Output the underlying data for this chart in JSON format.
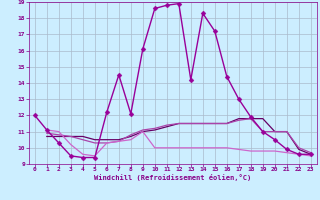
{
  "background_color": "#cceeff",
  "grid_color": "#aabbcc",
  "xlim": [
    -0.5,
    23.5
  ],
  "ylim": [
    9,
    19
  ],
  "xticks": [
    0,
    1,
    2,
    3,
    4,
    5,
    6,
    7,
    8,
    9,
    10,
    11,
    12,
    13,
    14,
    15,
    16,
    17,
    18,
    19,
    20,
    21,
    22,
    23
  ],
  "yticks": [
    9,
    10,
    11,
    12,
    13,
    14,
    15,
    16,
    17,
    18,
    19
  ],
  "xlabel": "Windchill (Refroidissement éolien,°C)",
  "series": [
    {
      "x": [
        0,
        1,
        2,
        3,
        4,
        5,
        6,
        7,
        8,
        9,
        10,
        11,
        12,
        13,
        14,
        15,
        16,
        17,
        18,
        19,
        20,
        21,
        22,
        23
      ],
      "y": [
        12.0,
        11.1,
        10.3,
        9.5,
        9.4,
        9.4,
        12.2,
        14.5,
        12.1,
        16.1,
        18.6,
        18.8,
        18.9,
        14.2,
        18.3,
        17.2,
        14.4,
        13.0,
        11.9,
        11.0,
        10.5,
        9.9,
        9.6,
        9.6
      ],
      "color": "#990099",
      "marker": "D",
      "markersize": 2.5,
      "linewidth": 1.0
    },
    {
      "x": [
        1,
        2,
        3,
        4,
        5,
        6,
        7,
        8,
        9,
        10,
        11,
        12,
        13,
        14,
        15,
        16,
        17,
        18,
        19,
        20,
        21,
        22,
        23
      ],
      "y": [
        10.7,
        10.7,
        10.7,
        10.7,
        10.5,
        10.5,
        10.5,
        10.7,
        11.0,
        11.1,
        11.3,
        11.5,
        11.5,
        11.5,
        11.5,
        11.5,
        11.8,
        11.8,
        11.8,
        11.0,
        11.0,
        9.9,
        9.6
      ],
      "color": "#660066",
      "marker": null,
      "markersize": 0,
      "linewidth": 0.9
    },
    {
      "x": [
        1,
        2,
        3,
        4,
        5,
        6,
        7,
        8,
        9,
        10,
        11,
        12,
        13,
        14,
        15,
        16,
        17,
        18,
        19,
        20,
        21,
        22,
        23
      ],
      "y": [
        10.9,
        10.8,
        10.7,
        10.5,
        10.3,
        10.3,
        10.4,
        10.8,
        11.1,
        11.2,
        11.4,
        11.5,
        11.5,
        11.5,
        11.5,
        11.5,
        11.7,
        11.8,
        11.0,
        11.0,
        11.0,
        10.0,
        9.7
      ],
      "color": "#aa44aa",
      "marker": null,
      "markersize": 0,
      "linewidth": 0.9
    },
    {
      "x": [
        1,
        2,
        3,
        4,
        5,
        6,
        7,
        8,
        9,
        10,
        11,
        12,
        13,
        14,
        15,
        16,
        17,
        18,
        19,
        20,
        21,
        22,
        23
      ],
      "y": [
        11.1,
        11.0,
        10.2,
        9.6,
        9.5,
        10.3,
        10.4,
        10.5,
        11.0,
        10.0,
        10.0,
        10.0,
        10.0,
        10.0,
        10.0,
        10.0,
        9.9,
        9.8,
        9.8,
        9.8,
        9.7,
        9.6,
        9.5
      ],
      "color": "#cc66cc",
      "marker": null,
      "markersize": 0,
      "linewidth": 0.9
    }
  ]
}
